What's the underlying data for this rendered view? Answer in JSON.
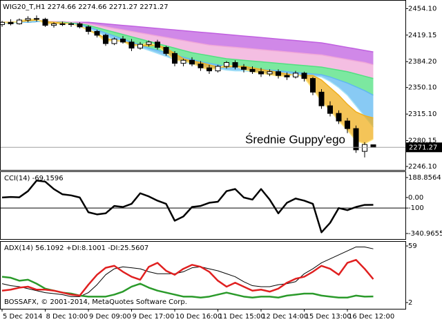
{
  "chart_data": [
    {
      "type": "candlestick",
      "title": "WIG20_T,H1 2274.66 2274.66 2271.27 2271.27",
      "annotation": "Średnie Guppy'ego",
      "categories": [
        "5 Dec 2014",
        null,
        null,
        null,
        null,
        "8 Dec 10:00",
        null,
        null,
        null,
        null,
        "9 Dec 09:00",
        null,
        null,
        null,
        null,
        "9 Dec 17:00",
        null,
        null,
        null,
        null,
        "10 Dec 16:00",
        null,
        null,
        null,
        null,
        "11 Dec 15:00",
        null,
        null,
        null,
        null,
        "12 Dec 14:00",
        null,
        null,
        null,
        null,
        "15 Dec 13:00",
        null,
        null,
        null,
        null,
        "16 Dec 12:00",
        null,
        null,
        null
      ],
      "open": [
        2433,
        2436,
        2434,
        2439,
        2441,
        2440,
        2432,
        2434,
        2433,
        2434,
        2430,
        2424,
        2419,
        2408,
        2414,
        2410,
        2402,
        2407,
        2410,
        2403,
        2395,
        2382,
        2386,
        2381,
        2376,
        2372,
        2378,
        2383,
        2377,
        2374,
        2371,
        2368,
        2371,
        2366,
        2364,
        2369,
        2362,
        2344,
        2326,
        2316,
        2306,
        2296,
        2266,
        2274.66
      ],
      "high": [
        2438,
        2440,
        2441,
        2444,
        2445,
        2442,
        2436,
        2437,
        2436,
        2436,
        2432,
        2426,
        2421,
        2416,
        2418,
        2414,
        2410,
        2412,
        2413,
        2405,
        2398,
        2388,
        2390,
        2385,
        2380,
        2380,
        2385,
        2386,
        2381,
        2378,
        2376,
        2374,
        2374,
        2370,
        2372,
        2371,
        2364,
        2348,
        2332,
        2320,
        2310,
        2300,
        2278,
        2274.66
      ],
      "low": [
        2430,
        2432,
        2433,
        2436,
        2437,
        2430,
        2429,
        2431,
        2430,
        2428,
        2420,
        2416,
        2405,
        2406,
        2408,
        2398,
        2400,
        2404,
        2400,
        2392,
        2378,
        2378,
        2378,
        2372,
        2368,
        2370,
        2375,
        2374,
        2370,
        2368,
        2364,
        2365,
        2362,
        2360,
        2362,
        2358,
        2340,
        2322,
        2312,
        2302,
        2290,
        2264,
        2258,
        2271.27
      ],
      "close": [
        2436,
        2434,
        2439,
        2441,
        2440,
        2432,
        2434,
        2433,
        2434,
        2430,
        2424,
        2419,
        2408,
        2414,
        2410,
        2402,
        2407,
        2410,
        2403,
        2395,
        2382,
        2386,
        2381,
        2376,
        2372,
        2378,
        2383,
        2377,
        2374,
        2371,
        2368,
        2371,
        2366,
        2364,
        2369,
        2362,
        2344,
        2326,
        2316,
        2306,
        2296,
        2268,
        2275,
        2271.27
      ],
      "up_color": "#ffffff",
      "down_color": "#000000",
      "ylim": [
        2241.5,
        2465.4
      ],
      "yticks": [
        {
          "value": 2454.1,
          "label": "2454.10"
        },
        2419.15,
        {
          "value": 2384.2,
          "label": "2384.20"
        },
        {
          "value": 2350.1,
          "label": "2350.10"
        },
        {
          "value": 2315.1,
          "label": "2315.10"
        },
        2280.15,
        {
          "value": 2246.1,
          "label": "2246.10"
        }
      ],
      "guppy_long": [
        {
          "color": "#c060e0",
          "values": [
            2435,
            2435,
            2436,
            2436,
            2437,
            2437,
            2437,
            2437,
            2436,
            2436,
            2436,
            2435,
            2434,
            2433,
            2432,
            2431,
            2430,
            2429,
            2428,
            2427,
            2426,
            2425,
            2424,
            2423,
            2422,
            2421,
            2420,
            2419,
            2418,
            2417,
            2416,
            2415,
            2414,
            2413,
            2412,
            2411,
            2410,
            2409,
            2407,
            2405,
            2403,
            2401,
            2399,
            2397
          ]
        },
        {
          "color": "#f0a8d8",
          "values": [
            2435,
            2435,
            2436,
            2436,
            2437,
            2437,
            2437,
            2437,
            2436,
            2435,
            2434,
            2432,
            2430,
            2428,
            2426,
            2424,
            2422,
            2420,
            2418,
            2416,
            2414,
            2412,
            2410,
            2408,
            2406,
            2405,
            2404,
            2403,
            2402,
            2401,
            2400,
            2399,
            2398,
            2397,
            2396,
            2395,
            2394,
            2393,
            2391,
            2389,
            2387,
            2385,
            2383,
            2380
          ]
        },
        {
          "color": "#50e080",
          "values": [
            2435,
            2435,
            2436,
            2436,
            2437,
            2437,
            2436,
            2436,
            2435,
            2434,
            2432,
            2429,
            2426,
            2423,
            2420,
            2417,
            2414,
            2411,
            2408,
            2405,
            2402,
            2399,
            2396,
            2394,
            2392,
            2390,
            2388,
            2387,
            2386,
            2385,
            2384,
            2383,
            2382,
            2381,
            2380,
            2379,
            2378,
            2377,
            2375,
            2373,
            2371,
            2368,
            2365,
            2362
          ]
        },
        {
          "color": "#60b8f0",
          "values": [
            2435,
            2435,
            2436,
            2436,
            2437,
            2437,
            2436,
            2435,
            2434,
            2433,
            2430,
            2426,
            2422,
            2418,
            2414,
            2410,
            2406,
            2402,
            2399,
            2396,
            2393,
            2390,
            2387,
            2384,
            2382,
            2380,
            2378,
            2377,
            2376,
            2375,
            2374,
            2373,
            2372,
            2371,
            2370,
            2369,
            2368,
            2367,
            2364,
            2360,
            2356,
            2351,
            2346,
            2340
          ]
        },
        {
          "color": "#a8e4f8",
          "values": [
            2435,
            2435,
            2436,
            2437,
            2438,
            2437,
            2436,
            2435,
            2434,
            2432,
            2428,
            2423,
            2418,
            2413,
            2410,
            2407,
            2403,
            2399,
            2395,
            2391,
            2387,
            2384,
            2381,
            2379,
            2377,
            2375,
            2373,
            2372,
            2372,
            2371,
            2370,
            2369,
            2368,
            2367,
            2366,
            2365,
            2365,
            2364,
            2358,
            2350,
            2340,
            2326,
            2312,
            2298
          ]
        }
      ],
      "guppy_short": [
        {
          "color": "#f0b020",
          "values": [
            2436,
            2436,
            2437,
            2438,
            2439,
            2437,
            2436,
            2435,
            2434,
            2431,
            2426,
            2421,
            2415,
            2412,
            2411,
            2408,
            2405,
            2405,
            2406,
            2402,
            2395,
            2388,
            2385,
            2383,
            2380,
            2377,
            2377,
            2378,
            2378,
            2376,
            2374,
            2372,
            2370,
            2368,
            2366,
            2366,
            2366,
            2360,
            2350,
            2340,
            2328,
            2318,
            2313,
            2310
          ]
        },
        {
          "color": "#ffe680",
          "values": [
            2436,
            2435,
            2438,
            2440,
            2440,
            2434,
            2434,
            2434,
            2434,
            2431,
            2425,
            2420,
            2410,
            2413,
            2411,
            2404,
            2406,
            2409,
            2405,
            2396,
            2386,
            2385,
            2382,
            2377,
            2373,
            2376,
            2380,
            2378,
            2374,
            2371,
            2369,
            2367,
            2365,
            2365,
            2368,
            2363,
            2348,
            2332,
            2320,
            2306,
            2294,
            2280,
            2276,
            2282
          ]
        }
      ]
    },
    {
      "type": "line",
      "title": "CCI(14) -69.1596",
      "series": [
        {
          "color": "#000000",
          "values": [
            0,
            5,
            2,
            60,
            160,
            150,
            80,
            30,
            20,
            0,
            -140,
            -160,
            -150,
            -80,
            -90,
            -60,
            40,
            10,
            -30,
            -60,
            -220,
            -180,
            -90,
            -80,
            -50,
            -40,
            60,
            80,
            0,
            -20,
            80,
            -20,
            -150,
            -50,
            -10,
            -30,
            -60,
            -330,
            -240,
            -100,
            -120,
            -90,
            -70,
            -69.1596
          ]
        }
      ],
      "hline": -100,
      "ylim": [
        -393.3,
        247.7
      ],
      "yticks": [
        188.8564,
        {
          "value": 0,
          "label": "0.00"
        },
        -100,
        -340.9655
      ]
    },
    {
      "type": "line",
      "title": "ADX(14) 56.1092 +DI:8.1001 -DI:25.5607",
      "annotation": "BOSSAFX, © 2001-2014, MetaQuotes Software Corp.",
      "series": [
        {
          "color": "#000000",
          "width": 1,
          "values": [
            21,
            19,
            18,
            16,
            14,
            12,
            11,
            10,
            8,
            8,
            12,
            20,
            30,
            36,
            38,
            37,
            36,
            33,
            31,
            31,
            31,
            33,
            37,
            38,
            36,
            34,
            31,
            28,
            23,
            19,
            18,
            18,
            20,
            21,
            23,
            31,
            36,
            42,
            46,
            50,
            54,
            58,
            58,
            56.1092
          ]
        },
        {
          "color": "#2a9a2a",
          "width": 2.5,
          "values": [
            28,
            27,
            24,
            25,
            21,
            16,
            14,
            12,
            11,
            9,
            8,
            8,
            8,
            10,
            13,
            18,
            21,
            17,
            14,
            12,
            10,
            8,
            8,
            7,
            8,
            10,
            12,
            10,
            8,
            7,
            8,
            8,
            7,
            9,
            10,
            11,
            11,
            9,
            8,
            7,
            7,
            9,
            8,
            8.1001
          ]
        },
        {
          "color": "#e02020",
          "width": 2.5,
          "values": [
            14,
            15,
            17,
            18,
            15,
            15,
            14,
            12,
            10,
            9,
            20,
            30,
            37,
            39,
            33,
            28,
            25,
            38,
            42,
            34,
            30,
            36,
            40,
            38,
            33,
            24,
            18,
            22,
            18,
            14,
            15,
            13,
            16,
            22,
            26,
            28,
            33,
            39,
            36,
            30,
            42,
            45,
            36,
            25.5607
          ]
        }
      ],
      "ylim": [
        -4.3,
        63.9
      ],
      "yticks": [
        59,
        2
      ]
    }
  ]
}
